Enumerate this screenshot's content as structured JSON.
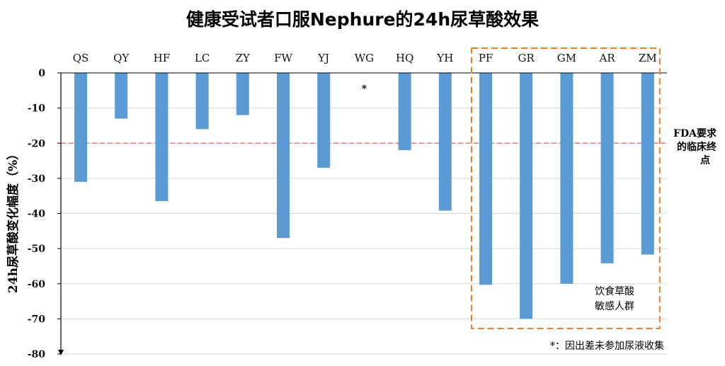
{
  "chart_data": {
    "type": "bar",
    "title": "健康受试者口服Nephure的24h尿草酸效果",
    "ylabel": "24h尿草酸变化幅度（%）",
    "xlabel": "",
    "ylim": [
      -80,
      0
    ],
    "yticks": [
      0,
      -10,
      -20,
      -30,
      -40,
      -50,
      -60,
      -70,
      -80
    ],
    "grid": true,
    "categories": [
      "QS",
      "QY",
      "HF",
      "LC",
      "ZY",
      "FW",
      "YJ",
      "WG",
      "HQ",
      "YH",
      "PF",
      "GR",
      "GM",
      "AR",
      "ZM"
    ],
    "values": [
      -31,
      -13,
      -36.5,
      -16,
      -12,
      -47,
      -27,
      null,
      -22,
      -39.2,
      -60.3,
      -70,
      -60,
      -54.2,
      -51.7
    ],
    "missing_marker": "*",
    "reference_line": {
      "value": -20,
      "label_lines": [
        "FDA要求",
        "的临床终",
        "点"
      ],
      "color": "#e8606b"
    },
    "highlight_group": {
      "categories": [
        "PF",
        "GR",
        "GM",
        "AR",
        "ZM"
      ],
      "label_lines": [
        "饮食草酸",
        "敏感人群"
      ],
      "color": "#ed7d31"
    },
    "footnote": "*：因出差未参加尿液收集",
    "bar_color": "#5b9bd5"
  }
}
